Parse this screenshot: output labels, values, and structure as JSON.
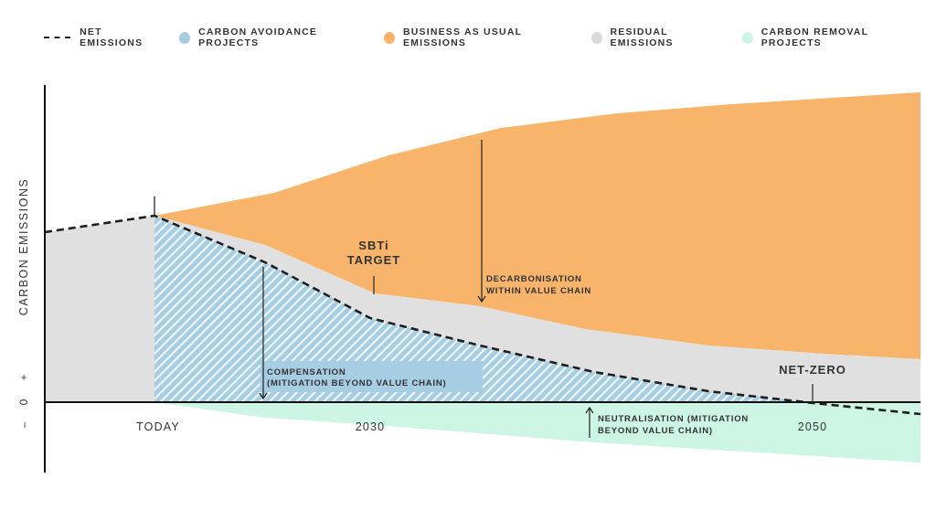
{
  "legend": [
    {
      "label": "NET EMISSIONS",
      "style": "dashed-line",
      "color": "#222222"
    },
    {
      "label": "CARBON AVOIDANCE PROJECTS",
      "color": "#a7cde3"
    },
    {
      "label": "BUSINESS AS USUAL EMISSIONS",
      "color": "#f8b46a"
    },
    {
      "label": "RESIDUAL EMISSIONS",
      "color": "#d9d9d9"
    },
    {
      "label": "CARBON REMOVAL PROJECTS",
      "color": "#ccf5e4"
    }
  ],
  "axis": {
    "y_label": "CARBON EMISSIONS",
    "plus": "+",
    "zero": "0",
    "minus": "–"
  },
  "x_labels": {
    "today": "TODAY",
    "y2030": "2030",
    "y2050": "2050"
  },
  "annotations": {
    "sbti_1": "SBTi",
    "sbti_2": "TARGET",
    "decarb_1": "DECARBONISATION",
    "decarb_2": "WITHIN VALUE CHAIN",
    "comp_1": "COMPENSATION",
    "comp_2": "(MITIGATION BEYOND VALUE CHAIN)",
    "neut_1": "NEUTRALISATION (MITIGATION",
    "neut_2": "BEYOND VALUE CHAIN)",
    "netzero": "NET-ZERO"
  }
}
